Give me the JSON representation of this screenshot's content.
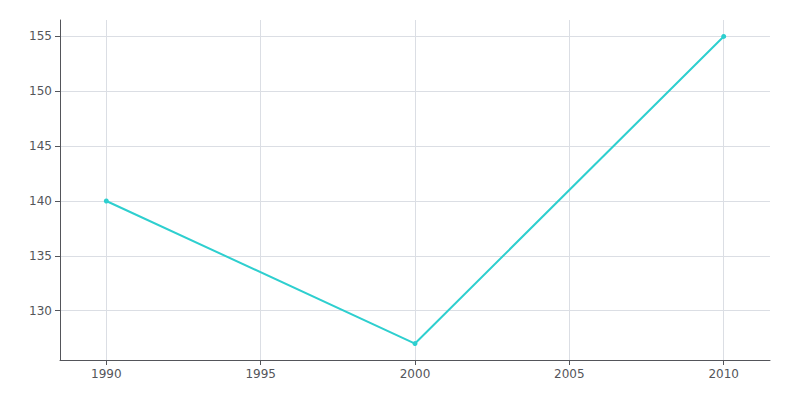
{
  "chart_data": {
    "type": "line",
    "x": [
      1990,
      2000,
      2010
    ],
    "values": [
      140,
      127,
      155
    ],
    "color": "#2ecfcf",
    "marker": "circle",
    "xlim": [
      1988.5,
      2011.5
    ],
    "xticks": [
      1990,
      1995,
      2000,
      2005,
      2010
    ],
    "ylim": [
      125.5,
      156.5
    ],
    "yticks": [
      130,
      135,
      140,
      145,
      150,
      155
    ],
    "grid": true
  }
}
